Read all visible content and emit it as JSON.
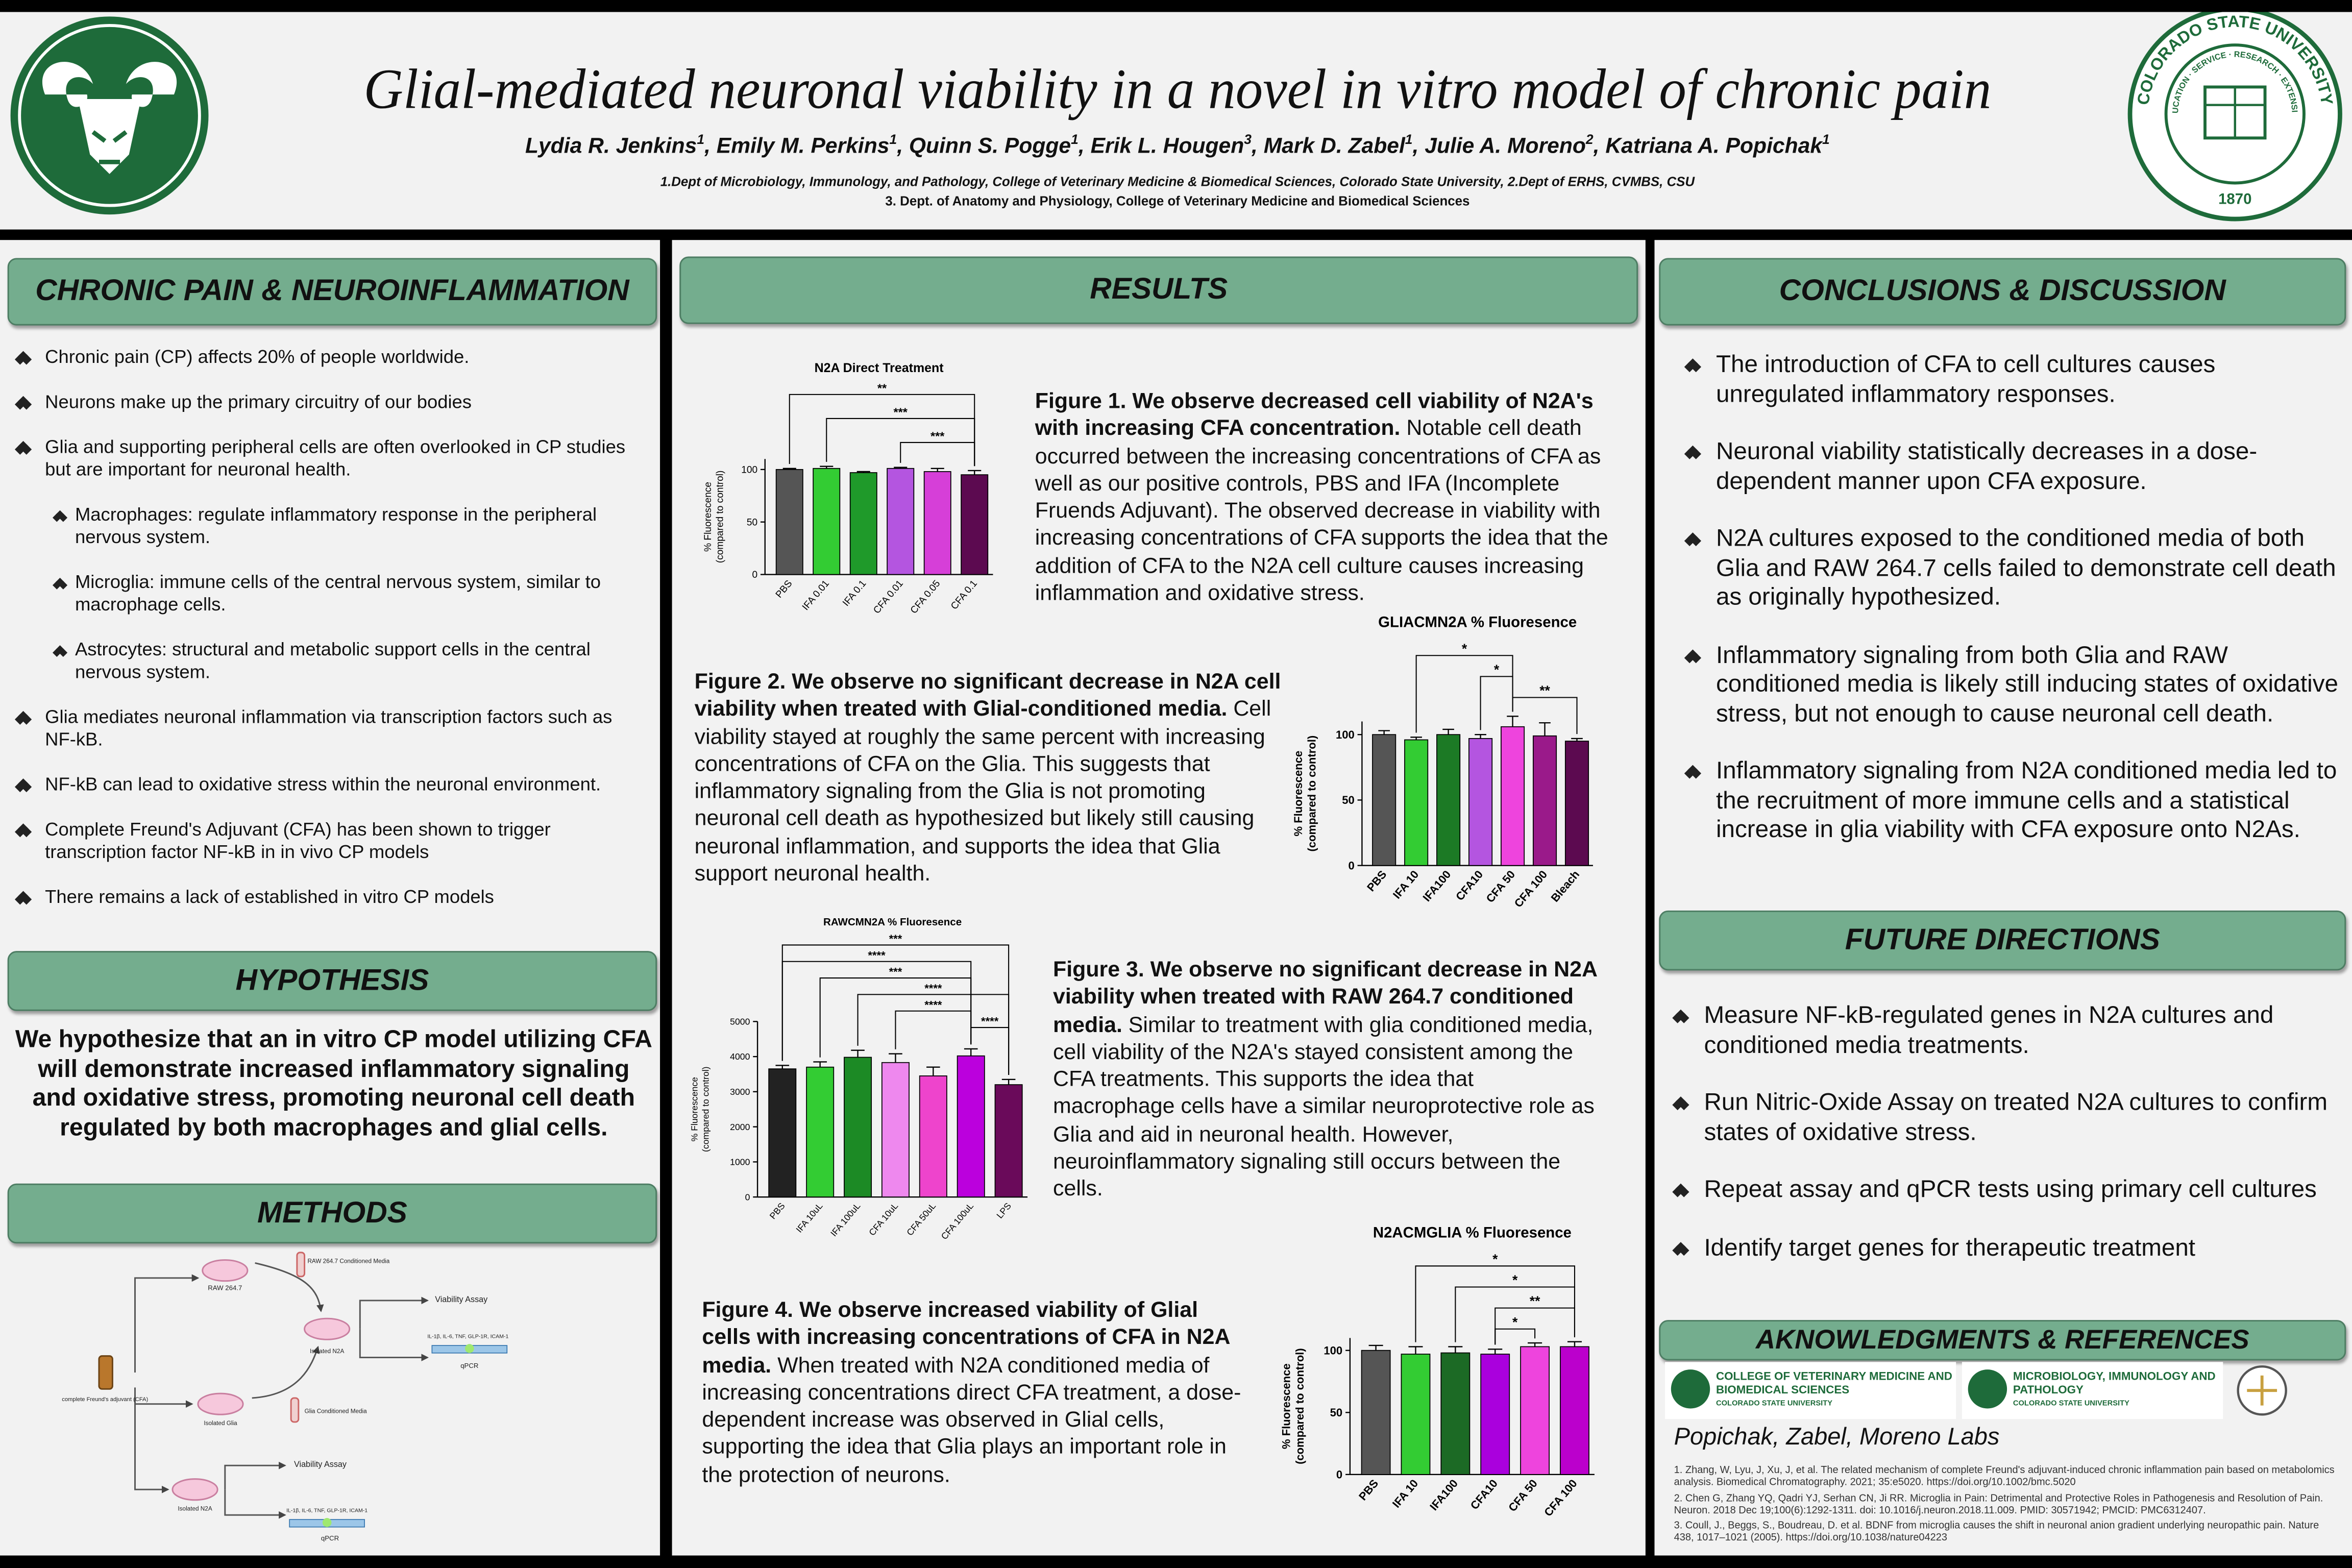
{
  "header": {
    "title": "Glial-mediated neuronal viability in a novel in vitro model of chronic pain",
    "authors": [
      {
        "name": "Lydia R. Jenkins",
        "sup": "1"
      },
      {
        "name": "Emily M. Perkins",
        "sup": "1"
      },
      {
        "name": "Quinn S. Pogge",
        "sup": "1"
      },
      {
        "name": "Erik L. Hougen",
        "sup": "3"
      },
      {
        "name": "Mark D. Zabel",
        "sup": "1"
      },
      {
        "name": "Julie A. Moreno",
        "sup": "2"
      },
      {
        "name": "Katriana A. Popichak",
        "sup": "1"
      }
    ],
    "author_separator": ", ",
    "affiliations": [
      "1.Dept of Microbiology, Immunology, and Pathology, College of Veterinary Medicine & Biomedical Sciences, Colorado State University, 2.Dept of ERHS, CVMBS, CSU",
      "3. Dept. of Anatomy and Physiology, College of Veterinary Medicine and Biomedical Sciences"
    ],
    "seal": {
      "name": "COLORADO STATE UNIVERSITY",
      "motto": "EDUCATION · SERVICE · RESEARCH · EXTENSION",
      "year": "1870"
    }
  },
  "intro": {
    "title": "CHRONIC PAIN & NEUROINFLAMMATION",
    "bullets": [
      {
        "text": "Chronic pain (CP) affects 20% of people worldwide."
      },
      {
        "text": "Neurons make up the primary circuitry of our bodies"
      },
      {
        "text": "Glia and supporting peripheral cells are often overlooked in CP studies but are important for neuronal health.",
        "sub": [
          "Macrophages: regulate inflammatory response in the peripheral nervous system.",
          "Microglia: immune cells of the central nervous system, similar to macrophage cells.",
          "Astrocytes: structural and metabolic support cells in the central nervous system."
        ]
      },
      {
        "text": "Glia mediates neuronal inflammation via transcription factors such as NF-kB."
      },
      {
        "text": "NF-kB can lead to oxidative stress within the neuronal environment."
      },
      {
        "text": "Complete Freund's Adjuvant (CFA) has been shown to trigger transcription factor NF-kB in in vivo CP models"
      },
      {
        "text": "There remains a lack of established in vitro CP models"
      }
    ]
  },
  "hypothesis": {
    "title": "HYPOTHESIS",
    "text": "We hypothesize that an in vitro CP model utilizing CFA will demonstrate increased inflammatory signaling and oxidative stress, promoting neuronal cell death regulated by both macrophages and glial cells."
  },
  "methods": {
    "title": "METHODS",
    "labels": [
      "RAW 264.7",
      "RAW 264.7 Conditioned Media",
      "Viability Assay",
      "IL-1β, IL-6, TNF, GLP-1R, ICAM-1",
      "qPCR",
      "Isolated N2A",
      "Isolated Glia",
      "Glia Conditioned Media",
      "complete Freund's adjuvant (CFA)",
      "Viability Assay",
      "Isolated N2A",
      "IL-1β, IL-6, TNF, GLP-1R, ICAM-1",
      "qPCR"
    ]
  },
  "results": {
    "title": "RESULTS",
    "figures": [
      {
        "lead": "Figure 1. We observe decreased cell viability of N2A's with increasing CFA concentration.",
        "body": " Notable cell death occurred between the increasing concentrations of CFA as well as our positive controls, PBS and IFA (Incomplete Fruends Adjuvant). The observed decrease in viability with increasing concentrations of CFA supports the idea that the addition of CFA to the N2A cell culture causes increasing inflammation and oxidative stress."
      },
      {
        "lead": "Figure 2. We observe no significant decrease in N2A cell viability when treated with Glial-conditioned media.",
        "body": " Cell viability stayed at roughly the same percent with increasing concentrations of CFA on the Glia.  This suggests that inflammatory signaling from the Glia is not promoting neuronal cell death as hypothesized but likely still causing neuronal inflammation, and supports the idea that Glia support neuronal health."
      },
      {
        "lead": "Figure 3. We observe no significant decrease in N2A viability when treated with RAW 264.7 conditioned media.",
        "body": " Similar to treatment with glia conditioned media, cell viability of the N2A's stayed consistent among the CFA treatments. This supports the idea that macrophage cells have a similar neuroprotective role as Glia and aid in neuronal health. However, neuroinflammatory signaling still occurs between the cells."
      },
      {
        "lead": "Figure 4. We observe increased viability of Glial cells with increasing concentrations of CFA in N2A media.",
        "body": " When treated with N2A conditioned media of increasing concentrations direct CFA treatment, a dose-dependent increase was observed in Glial cells, supporting the idea that Glia plays an important role in the protection of neurons."
      }
    ]
  },
  "chart_data": [
    {
      "type": "bar",
      "title": "N2A Direct Treatment",
      "ylabel": [
        "% Fluorescence",
        "(compared to control)"
      ],
      "categories": [
        "PBS",
        "IFA 0.01",
        "IFA 0.1",
        "CFA 0.01",
        "CFA 0.05",
        "CFA 0.1"
      ],
      "values": [
        100,
        101,
        97,
        101,
        98,
        95
      ],
      "errors": [
        1,
        2,
        1,
        1,
        3,
        4
      ],
      "colors": [
        "#555555",
        "#33cc33",
        "#1f9a2a",
        "#b455e0",
        "#d63fd8",
        "#5c0a50"
      ],
      "ylim": [
        0,
        110
      ],
      "yticks": [
        0,
        50,
        100
      ],
      "significance": [
        {
          "from": "PBS",
          "to": "CFA 0.1",
          "label": "**"
        },
        {
          "from": "IFA 0.01",
          "to": "CFA 0.1",
          "label": "***"
        },
        {
          "from": "CFA 0.01",
          "to": "CFA 0.1",
          "label": "***"
        }
      ]
    },
    {
      "type": "bar",
      "title": "GLIACMN2A % Fluoresence",
      "ylabel": [
        "% Fluorescence",
        "(compared to control)"
      ],
      "categories": [
        "PBS",
        "IFA 10",
        "IFA100",
        "CFA10",
        "CFA 50",
        "CFA 100",
        "Bleach"
      ],
      "values": [
        100,
        96,
        100,
        97,
        106,
        99,
        95
      ],
      "errors": [
        3,
        2,
        4,
        3,
        8,
        10,
        2
      ],
      "colors": [
        "#555555",
        "#33cc33",
        "#1c7a25",
        "#b455e0",
        "#ee44dd",
        "#9a1a8a",
        "#5c0a50"
      ],
      "ylim": [
        0,
        110
      ],
      "yticks": [
        0,
        50,
        100
      ],
      "significance": [
        {
          "from": "IFA 10",
          "to": "CFA 50",
          "label": "*"
        },
        {
          "from": "CFA10",
          "to": "CFA 50",
          "label": "*"
        },
        {
          "from": "CFA 50",
          "to": "Bleach",
          "label": "**"
        }
      ]
    },
    {
      "type": "bar",
      "title": "RAWCMN2A % Fluoresence",
      "ylabel": [
        "% Fluorescence",
        "(compared to control)"
      ],
      "categories": [
        "PBS",
        "IFA 10uL",
        "IFA 100uL",
        "CFA 10uL",
        "CFA 50uL",
        "CFA 100uL",
        "LPS"
      ],
      "values": [
        3650,
        3700,
        3980,
        3830,
        3450,
        4020,
        3200
      ],
      "errors": [
        100,
        150,
        200,
        250,
        250,
        200,
        150
      ],
      "colors": [
        "#222222",
        "#33cc33",
        "#1c8a25",
        "#ee88ee",
        "#ee44cc",
        "#bb00dd",
        "#6a0a5a"
      ],
      "ylim": [
        0,
        5000
      ],
      "yticks": [
        0,
        1000,
        2000,
        3000,
        4000,
        5000
      ],
      "significance": [
        {
          "from": "PBS",
          "to": "LPS",
          "label": "***"
        },
        {
          "from": "PBS",
          "to": "CFA 100uL",
          "label": "****"
        },
        {
          "from": "IFA 10uL",
          "to": "CFA 100uL",
          "label": "***"
        },
        {
          "from": "IFA 100uL",
          "to": "LPS",
          "label": "****"
        },
        {
          "from": "CFA 10uL",
          "to": "CFA 100uL",
          "label": "****"
        },
        {
          "from": "CFA 100uL",
          "to": "LPS",
          "label": "****"
        }
      ]
    },
    {
      "type": "bar",
      "title": "N2ACMGLIA % Fluoresence",
      "ylabel": [
        "% Fluorescence",
        "(compared to control)"
      ],
      "categories": [
        "PBS",
        "IFA 10",
        "IFA100",
        "CFA10",
        "CFA 50",
        "CFA 100"
      ],
      "values": [
        100,
        97,
        98,
        97,
        103,
        103
      ],
      "errors": [
        4,
        6,
        5,
        4,
        3,
        4
      ],
      "colors": [
        "#555555",
        "#33cc33",
        "#1c6a25",
        "#aa00dd",
        "#ee44dd",
        "#bb00cc"
      ],
      "ylim": [
        0,
        110
      ],
      "yticks": [
        0,
        50,
        100
      ],
      "significance": [
        {
          "from": "IFA 10",
          "to": "CFA 100",
          "label": "*"
        },
        {
          "from": "IFA100",
          "to": "CFA 100",
          "label": "*"
        },
        {
          "from": "CFA10",
          "to": "CFA 100",
          "label": "**"
        },
        {
          "from": "CFA10",
          "to": "CFA 50",
          "label": "*"
        }
      ]
    }
  ],
  "conclusions": {
    "title": "CONCLUSIONS & DISCUSSION",
    "bullets": [
      "The introduction of CFA to cell cultures causes unregulated inflammatory responses.",
      "Neuronal viability statistically decreases in a dose-dependent manner upon CFA exposure.",
      "N2A cultures exposed to the conditioned media of both Glia and RAW 264.7 cells failed to demonstrate cell death as originally hypothesized.",
      "Inflammatory signaling from both Glia and RAW conditioned media is likely still inducing states of oxidative stress, but not enough to cause neuronal cell death.",
      "Inflammatory signaling from N2A conditioned media led to the recruitment of more immune cells and a statistical increase in glia viability with CFA exposure onto N2As."
    ]
  },
  "future": {
    "title": "FUTURE DIRECTIONS",
    "bullets": [
      "Measure NF-kB-regulated genes in N2A cultures and conditioned media treatments.",
      "Run Nitric-Oxide Assay on treated N2A cultures to confirm states of oxidative stress.",
      "Repeat assay and qPCR tests using primary cell cultures",
      "Identify target genes for therapeutic treatment"
    ]
  },
  "acknowledgments": {
    "title": "AKNOWLEDGMENTS & REFERENCES",
    "logos": [
      {
        "name": "COLLEGE OF VETERINARY MEDICINE AND BIOMEDICAL SCIENCES",
        "org": "COLORADO STATE UNIVERSITY"
      },
      {
        "name": "MICROBIOLOGY, IMMUNOLOGY AND PATHOLOGY",
        "org": "COLORADO STATE UNIVERSITY"
      }
    ],
    "labs": "Popichak, Zabel, Moreno Labs",
    "references": [
      "1. Zhang, W, Lyu, J, Xu, J, et al. The related mechanism of complete Freund's adjuvant-induced chronic inflammation pain based on metabolomics analysis. Biomedical Chromatography. 2021; 35:e5020. https://doi.org/10.1002/bmc.5020",
      "2. Chen G, Zhang YQ, Qadri YJ, Serhan CN, Ji RR. Microglia in Pain: Detrimental and Protective Roles in Pathogenesis and Resolution of Pain. Neuron. 2018 Dec 19;100(6):1292-1311. doi: 10.1016/j.neuron.2018.11.009. PMID: 30571942; PMCID: PMC6312407.",
      "3. Coull, J., Beggs, S., Boudreau, D. et al. BDNF from microglia causes the shift in neuronal anion gradient underlying neuropathic pain. Nature 438, 1017–1021 (2005). https://doi.org/10.1038/nature04223"
    ]
  }
}
